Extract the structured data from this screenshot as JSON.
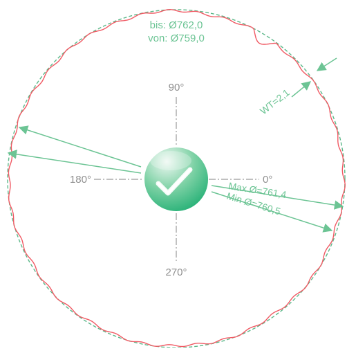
{
  "tolerance": {
    "upper_label": "bis: Ø762,0",
    "lower_label": "von: Ø759,0"
  },
  "angles": {
    "deg_0": "0°",
    "deg_90": "90°",
    "deg_180": "180°",
    "deg_270": "270°"
  },
  "measurements": {
    "wall_thickness": "WT=2,1",
    "max_diameter": "Max Ø=761,4",
    "min_diameter": "Min Ø=760,5"
  },
  "status": {
    "icon": "checkmark-icon",
    "state": "pass"
  },
  "colors": {
    "measured_outline": "#f05a64",
    "tolerance_outline": "#5cb88a",
    "label_green": "#6cc494",
    "axis_gray": "#9a9a9a",
    "badge_light": "#d8f0e2",
    "badge_dark": "#0fa86a"
  }
}
